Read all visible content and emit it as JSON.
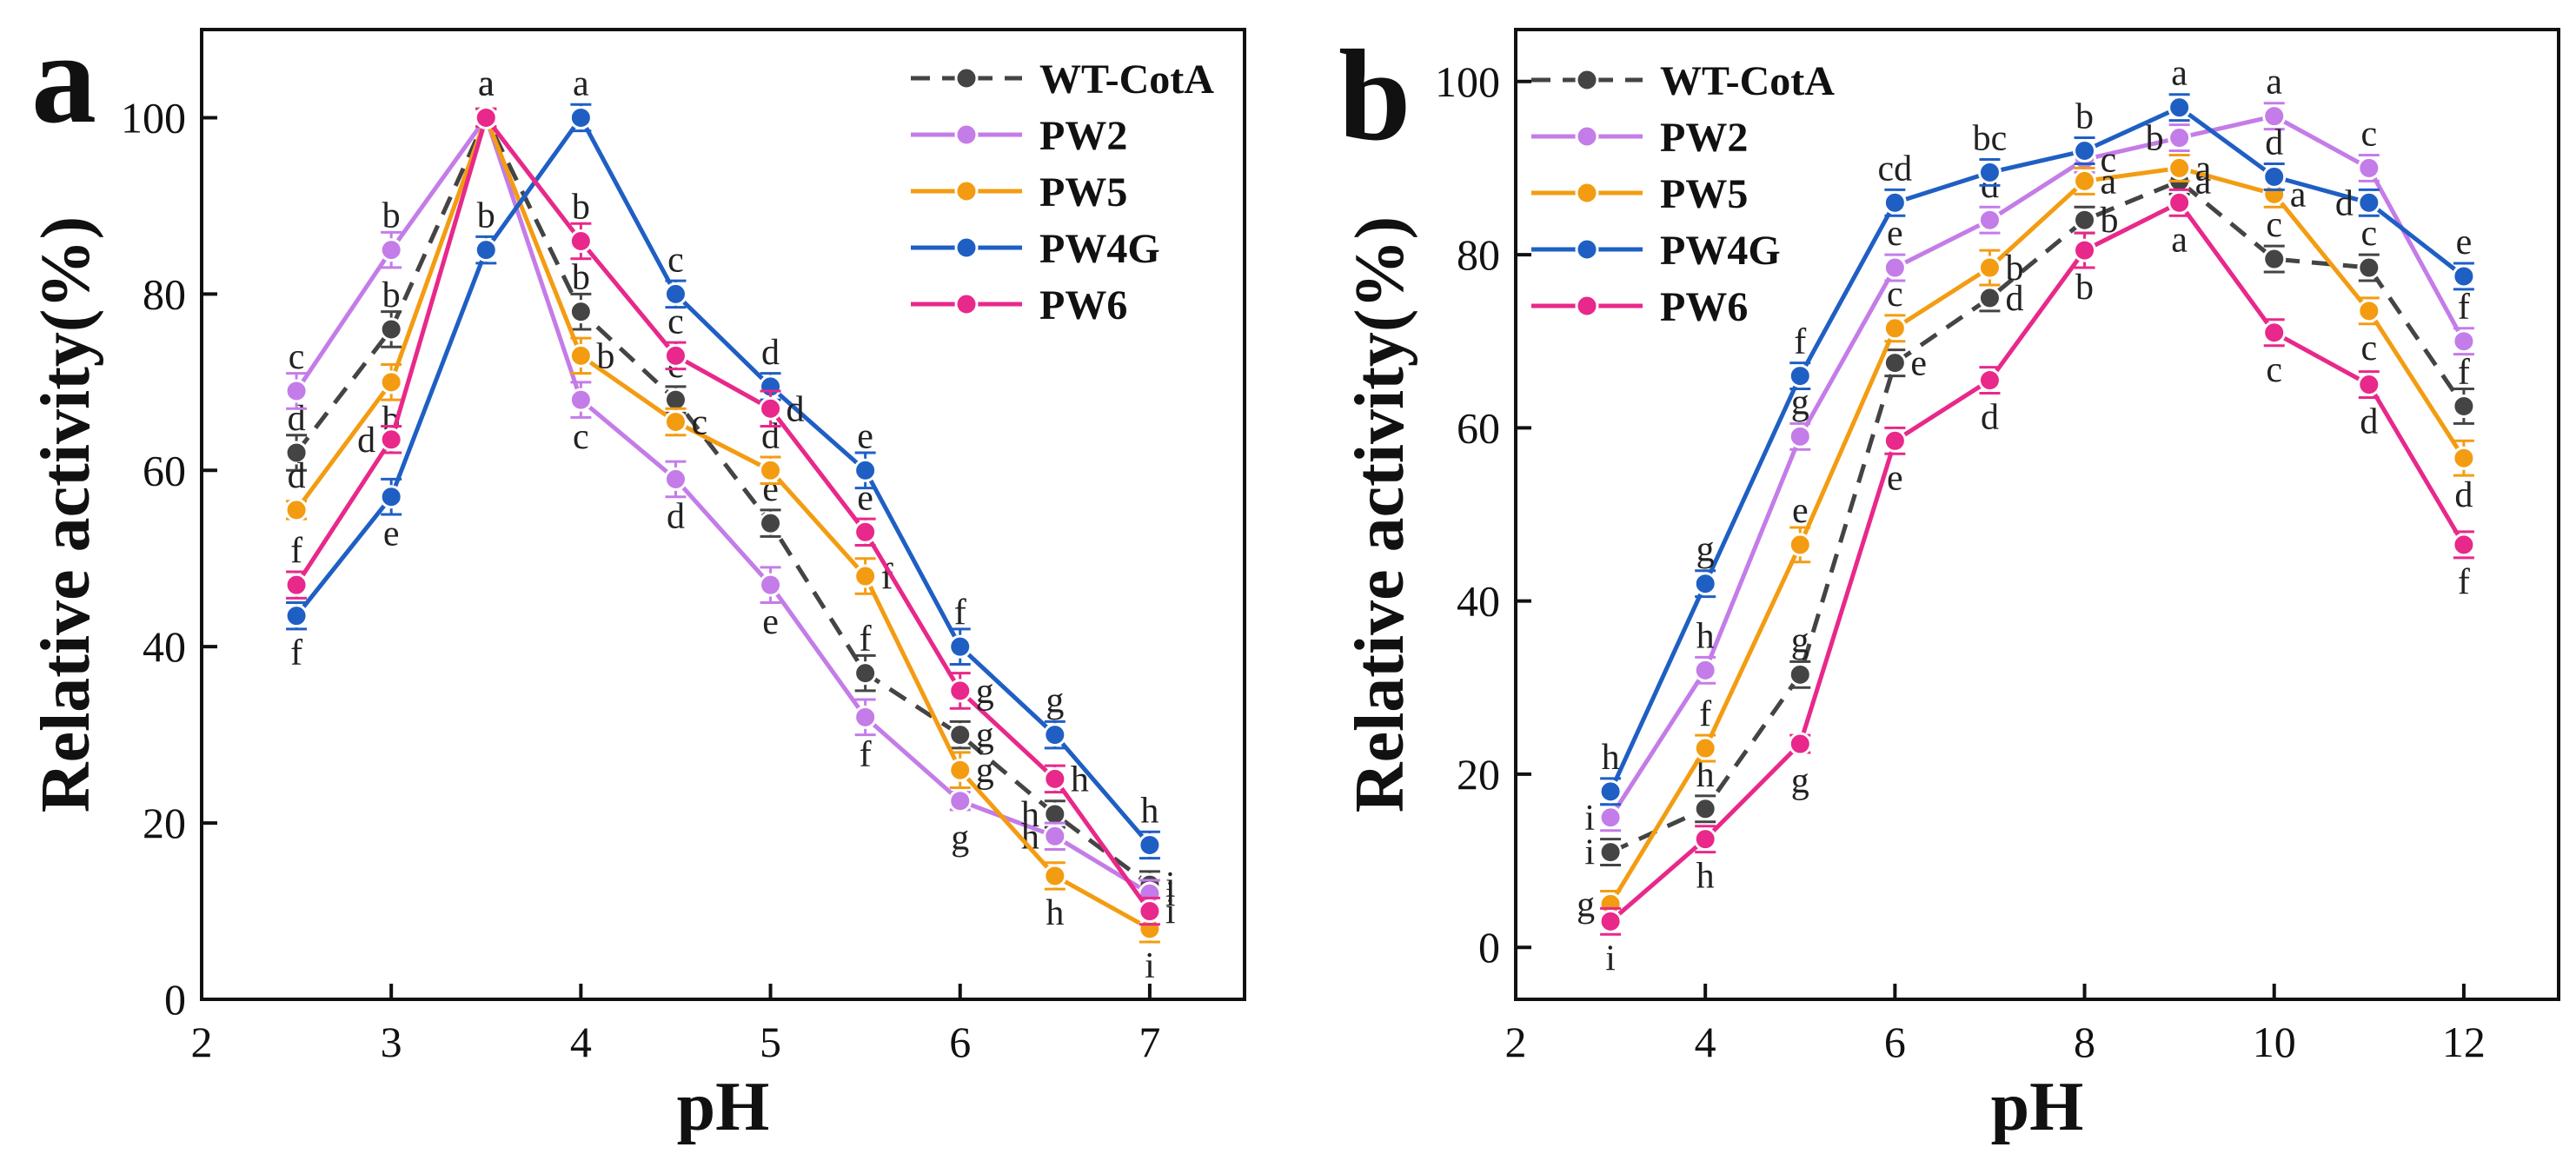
{
  "chart_data": [
    {
      "panel": "a",
      "type": "line",
      "xlabel": "pH",
      "ylabel": "Relative activity(%)",
      "xlim": [
        2,
        7.5
      ],
      "ylim": [
        0,
        110
      ],
      "xticks": [
        2,
        3,
        4,
        5,
        6,
        7
      ],
      "yticks": [
        0,
        20,
        40,
        60,
        80,
        100
      ],
      "x": [
        2.5,
        3,
        3.5,
        4,
        4.5,
        5,
        5.5,
        6,
        6.5,
        7
      ],
      "legend_position": "top-right",
      "series": [
        {
          "name": "WT-CotA",
          "color": "#444444",
          "dashed": true,
          "values": [
            62,
            76,
            100,
            78,
            68,
            54,
            37,
            30,
            21,
            13
          ],
          "errors": [
            2,
            2,
            1,
            2,
            1.5,
            1.5,
            2,
            1.5,
            1.5,
            1.5
          ],
          "letters": [
            "d",
            "b",
            "a",
            "b",
            "c",
            "e",
            "f",
            "g",
            "h",
            "i"
          ],
          "letter_pos": [
            "above",
            "above",
            "above",
            "above",
            "above",
            "above",
            "above",
            "right",
            "left",
            "right"
          ]
        },
        {
          "name": "PW2",
          "color": "#C47CE8",
          "dashed": false,
          "values": [
            69,
            85,
            100,
            68,
            59,
            47,
            32,
            22.5,
            18.5,
            12
          ],
          "errors": [
            2,
            2,
            1,
            2,
            2,
            2,
            2,
            1,
            1.5,
            1.5
          ],
          "letters": [
            "c",
            "b",
            "a",
            "c",
            "d",
            "e",
            "f",
            "g",
            "h",
            "i"
          ],
          "letter_pos": [
            "above",
            "above",
            "above",
            "below",
            "below",
            "below",
            "below",
            "below",
            "left",
            "right"
          ]
        },
        {
          "name": "PW5",
          "color": "#F39C12",
          "dashed": false,
          "values": [
            55.5,
            70,
            100,
            73,
            65.5,
            60,
            48,
            26,
            14,
            8
          ],
          "errors": [
            1,
            2,
            1,
            2,
            1.5,
            1.5,
            2,
            2,
            1.5,
            1.5
          ],
          "letters": [
            "d",
            "b",
            "a",
            "b",
            "c",
            "d",
            "f",
            "g",
            "h",
            "i"
          ],
          "letter_pos": [
            "above",
            "below",
            "above",
            "right",
            "right",
            "above",
            "right",
            "right",
            "below",
            "below"
          ]
        },
        {
          "name": "PW4G",
          "color": "#1F5FC4",
          "dashed": false,
          "values": [
            43.5,
            57,
            85,
            100,
            80,
            69.5,
            60,
            40,
            30,
            17.5
          ],
          "errors": [
            1.5,
            2,
            1.5,
            1.5,
            1.5,
            1.5,
            2,
            2,
            1.5,
            1.5
          ],
          "letters": [
            "f",
            "e",
            "b",
            "a",
            "c",
            "d",
            "e",
            "f",
            "g",
            "h"
          ],
          "letter_pos": [
            "below",
            "below",
            "above",
            "above",
            "above",
            "above",
            "above",
            "above",
            "above",
            "above"
          ]
        },
        {
          "name": "PW6",
          "color": "#E8288A",
          "dashed": false,
          "values": [
            47,
            63.5,
            100,
            86,
            73,
            67,
            53,
            35,
            25,
            10
          ],
          "errors": [
            1.5,
            1.5,
            1,
            2,
            1.5,
            2,
            1.5,
            2,
            1.5,
            1.5
          ],
          "letters": [
            "f",
            "d",
            "a",
            "b",
            "c",
            "d",
            "e",
            "g",
            "h",
            "i"
          ],
          "letter_pos": [
            "above",
            "left",
            "above",
            "above",
            "above",
            "right",
            "above",
            "right",
            "right",
            "right"
          ]
        }
      ]
    },
    {
      "panel": "b",
      "type": "line",
      "xlabel": "pH",
      "ylabel": "Relative activity(%)",
      "xlim": [
        2,
        13
      ],
      "ylim": [
        -6,
        106
      ],
      "xticks": [
        2,
        4,
        6,
        8,
        10,
        12
      ],
      "yticks": [
        0,
        20,
        40,
        60,
        80,
        100
      ],
      "x": [
        3,
        4,
        5,
        6,
        7,
        8,
        9,
        10,
        11,
        12
      ],
      "legend_position": "top-left",
      "series": [
        {
          "name": "WT-CotA",
          "color": "#444444",
          "dashed": true,
          "values": [
            11,
            16,
            31.5,
            67.5,
            75,
            84,
            88.5,
            79.5,
            78.5,
            62.5
          ],
          "errors": [
            1.5,
            1.5,
            1.5,
            1.5,
            1.5,
            1.5,
            1.5,
            1.5,
            1.5,
            2
          ],
          "letters": [
            "i",
            "h",
            "g",
            "e",
            "d",
            "b",
            "a",
            "c",
            "c",
            "f"
          ],
          "letter_pos": [
            "left",
            "above",
            "above",
            "right",
            "right",
            "right",
            "right",
            "above",
            "above",
            "above"
          ]
        },
        {
          "name": "PW2",
          "color": "#C47CE8",
          "dashed": false,
          "values": [
            15,
            32,
            59,
            78.5,
            84,
            91,
            93.5,
            96,
            90,
            70
          ],
          "errors": [
            1.5,
            1.5,
            1.5,
            1.5,
            1.5,
            1.5,
            1.5,
            1.5,
            1.5,
            1.5
          ],
          "letters": [
            "i",
            "h",
            "g",
            "e",
            "d",
            "c",
            "b",
            "a",
            "c",
            "f"
          ],
          "letter_pos": [
            "left",
            "above",
            "above",
            "above",
            "above",
            "right",
            "left",
            "above",
            "above",
            "above"
          ]
        },
        {
          "name": "PW5",
          "color": "#F39C12",
          "dashed": false,
          "values": [
            5,
            23,
            46.5,
            71.5,
            78.5,
            88.5,
            90,
            87,
            73.5,
            56.5
          ],
          "errors": [
            1.5,
            1.5,
            2,
            1.5,
            2,
            1.5,
            1.5,
            1.5,
            1.5,
            2
          ],
          "letters": [
            "g",
            "f",
            "e",
            "c",
            "b",
            "a",
            "a",
            "a",
            "c",
            "d"
          ],
          "letter_pos": [
            "left",
            "above",
            "above",
            "above",
            "right",
            "right",
            "right",
            "right",
            "below",
            "below"
          ]
        },
        {
          "name": "PW4G",
          "color": "#1F5FC4",
          "dashed": false,
          "values": [
            18,
            42,
            66,
            86,
            89.5,
            92,
            97,
            89,
            86,
            77.5
          ],
          "errors": [
            1.5,
            1.5,
            1.5,
            1.5,
            1.5,
            1.5,
            1.5,
            1.5,
            1.5,
            1.5
          ],
          "letters": [
            "h",
            "g",
            "f",
            "cd",
            "bc",
            "b",
            "a",
            "d",
            "d",
            "e"
          ],
          "letter_pos": [
            "above",
            "above",
            "above",
            "above",
            "above",
            "above",
            "above",
            "above",
            "left",
            "above"
          ]
        },
        {
          "name": "PW6",
          "color": "#E8288A",
          "dashed": false,
          "values": [
            3,
            12.5,
            23.5,
            58.5,
            65.5,
            80.5,
            86,
            71,
            65,
            46.5
          ],
          "errors": [
            1.5,
            1.5,
            1,
            1.5,
            1.5,
            2,
            1.5,
            1.5,
            1.5,
            1.5
          ],
          "letters": [
            "i",
            "h",
            "g",
            "e",
            "d",
            "b",
            "a",
            "c",
            "d",
            "f"
          ],
          "letter_pos": [
            "below",
            "below",
            "below",
            "below",
            "below",
            "below",
            "below",
            "below",
            "below",
            "below"
          ]
        }
      ]
    }
  ],
  "figure": {
    "panel_a_letter": "a",
    "panel_b_letter": "b"
  }
}
